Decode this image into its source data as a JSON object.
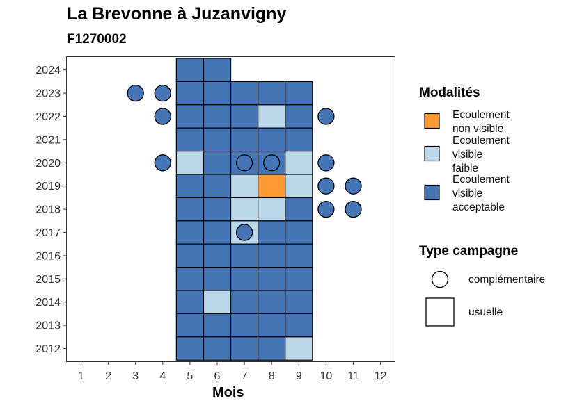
{
  "chart_data": {
    "type": "heatmap",
    "title": "La Brevonne à Juzanvigny",
    "subtitle": "F1270002",
    "xlabel": "Mois",
    "ylabel": "",
    "x_ticks": [
      "1",
      "2",
      "3",
      "4",
      "5",
      "6",
      "7",
      "8",
      "9",
      "10",
      "11",
      "12"
    ],
    "y_ticks": [
      "2012",
      "2013",
      "2014",
      "2015",
      "2016",
      "2017",
      "2018",
      "2019",
      "2020",
      "2021",
      "2022",
      "2023",
      "2024"
    ],
    "xlim": [
      0.5,
      12.5
    ],
    "ylim": [
      2011.5,
      2024.5
    ],
    "grid": false,
    "legend_placement": "right",
    "modalites": {
      "title": "Modalités",
      "entries": [
        {
          "key": "non_visible",
          "lines": [
            "Ecoulement",
            "non visible"
          ],
          "color": "#FF9933"
        },
        {
          "key": "faible",
          "lines": [
            "Ecoulement",
            "visible",
            "faible"
          ],
          "color": "#BBD7EA"
        },
        {
          "key": "acceptable",
          "lines": [
            "Ecoulement",
            "visible",
            "acceptable"
          ],
          "color": "#4575B4"
        }
      ]
    },
    "type_campagne": {
      "title": "Type campagne",
      "entries": [
        {
          "label": "complémentaire",
          "shape": "circle"
        },
        {
          "label": "usuelle",
          "shape": "square"
        }
      ]
    },
    "usuelle": [
      {
        "year": 2024,
        "months": [
          5,
          6
        ],
        "faible": [],
        "non_visible": []
      },
      {
        "year": 2023,
        "months": [
          5,
          6,
          7,
          8,
          9
        ],
        "faible": [],
        "non_visible": []
      },
      {
        "year": 2022,
        "months": [
          5,
          6,
          7,
          8,
          9
        ],
        "faible": [
          8
        ],
        "non_visible": []
      },
      {
        "year": 2021,
        "months": [
          5,
          6,
          7,
          8,
          9
        ],
        "faible": [],
        "non_visible": []
      },
      {
        "year": 2020,
        "months": [
          5,
          6,
          7,
          8,
          9
        ],
        "faible": [
          5,
          9
        ],
        "non_visible": []
      },
      {
        "year": 2019,
        "months": [
          5,
          6,
          7,
          8,
          9
        ],
        "faible": [
          7,
          9
        ],
        "non_visible": [
          8
        ]
      },
      {
        "year": 2018,
        "months": [
          5,
          6,
          7,
          8,
          9
        ],
        "faible": [
          7,
          8
        ],
        "non_visible": []
      },
      {
        "year": 2017,
        "months": [
          5,
          6,
          7,
          8,
          9
        ],
        "faible": [
          7
        ],
        "non_visible": []
      },
      {
        "year": 2016,
        "months": [
          5,
          6,
          7,
          8,
          9
        ],
        "faible": [],
        "non_visible": []
      },
      {
        "year": 2015,
        "months": [
          5,
          6,
          7,
          8,
          9
        ],
        "faible": [],
        "non_visible": []
      },
      {
        "year": 2014,
        "months": [
          5,
          6,
          7,
          8,
          9
        ],
        "faible": [
          6
        ],
        "non_visible": []
      },
      {
        "year": 2013,
        "months": [
          5,
          6,
          7,
          8,
          9
        ],
        "faible": [],
        "non_visible": []
      },
      {
        "year": 2012,
        "months": [
          5,
          6,
          7,
          8,
          9
        ],
        "faible": [
          9
        ],
        "non_visible": []
      }
    ],
    "complementaire": [
      {
        "year": 2023,
        "month": 3,
        "modalite": "acceptable"
      },
      {
        "year": 2023,
        "month": 4,
        "modalite": "acceptable"
      },
      {
        "year": 2022,
        "month": 4,
        "modalite": "acceptable"
      },
      {
        "year": 2022,
        "month": 10,
        "modalite": "acceptable"
      },
      {
        "year": 2020,
        "month": 4,
        "modalite": "acceptable"
      },
      {
        "year": 2020,
        "month": 7,
        "modalite": "acceptable"
      },
      {
        "year": 2020,
        "month": 8,
        "modalite": "acceptable"
      },
      {
        "year": 2020,
        "month": 10,
        "modalite": "acceptable"
      },
      {
        "year": 2019,
        "month": 10,
        "modalite": "acceptable"
      },
      {
        "year": 2019,
        "month": 11,
        "modalite": "acceptable"
      },
      {
        "year": 2018,
        "month": 10,
        "modalite": "acceptable"
      },
      {
        "year": 2018,
        "month": 11,
        "modalite": "acceptable"
      },
      {
        "year": 2017,
        "month": 7,
        "modalite": "acceptable"
      }
    ]
  }
}
